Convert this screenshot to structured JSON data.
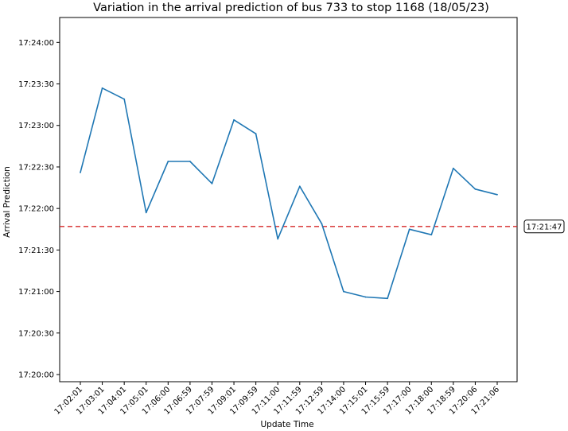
{
  "chart_data": {
    "type": "line",
    "title": "Variation in the arrival prediction of bus 733 to stop 1168 (18/05/23)",
    "xlabel": "Update Time",
    "ylabel": "Arrival Prediction",
    "categories": [
      "17:02:01",
      "17:03:01",
      "17:04:01",
      "17:05:01",
      "17:06:00",
      "17:06:59",
      "17:07:59",
      "17:09:01",
      "17:09:59",
      "17:11:00",
      "17:11:59",
      "17:12:59",
      "17:14:00",
      "17:15:01",
      "17:15:59",
      "17:17:00",
      "17:18:00",
      "17:18:59",
      "17:20:06",
      "17:21:06"
    ],
    "series": [
      {
        "color": "#1f77b4",
        "values": [
          "17:22:26",
          "17:23:27",
          "17:23:19",
          "17:21:57",
          "17:22:34",
          "17:22:34",
          "17:22:18",
          "17:23:04",
          "17:22:54",
          "17:21:38",
          "17:22:16",
          "17:21:49",
          "17:21:00",
          "17:20:56",
          "17:20:55",
          "17:21:45",
          "17:21:41",
          "17:22:29",
          "17:22:14",
          "17:22:10"
        ]
      }
    ],
    "yticks": [
      "17:20:00",
      "17:20:30",
      "17:21:00",
      "17:21:30",
      "17:22:00",
      "17:22:30",
      "17:23:00",
      "17:23:30",
      "17:24:00"
    ],
    "ylim": [
      "17:20:00",
      "17:24:18"
    ],
    "reference_line": {
      "value": "17:21:47",
      "label": "17:21:47",
      "color": "#d62728",
      "style": "dashed"
    },
    "grid": false
  }
}
